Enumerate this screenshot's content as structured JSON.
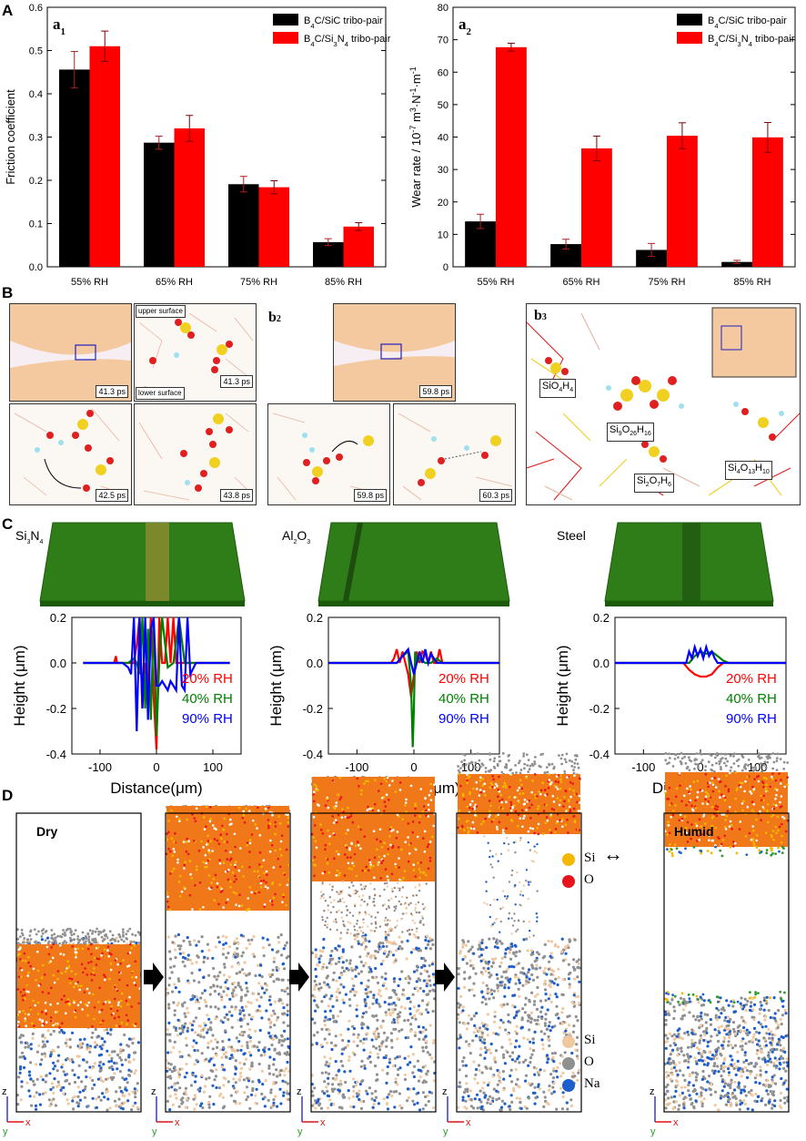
{
  "panels": {
    "A": "A",
    "B": "B",
    "C": "C",
    "D": "D"
  },
  "colors": {
    "black": "#000000",
    "red": "#ff0000",
    "green": "#008000",
    "blue": "#0000ff",
    "si_md": "#f5b800",
    "o_md": "#e8141b",
    "na": "#1f5fcc",
    "o_gray": "#909090",
    "si_peach": "#f0c8a0",
    "material": "#2e7d1a"
  },
  "chart_data": [
    {
      "type": "bar",
      "id": "a1",
      "panel_label": "a",
      "panel_sub": "1",
      "title": "",
      "categories": [
        "55% RH",
        "65% RH",
        "75% RH",
        "85% RH"
      ],
      "series": [
        {
          "name": "B4C/SiC tribo-pair",
          "legend_parts": [
            "B",
            "4",
            "C/SiC tribo-pair"
          ],
          "color": "#000000",
          "values": [
            0.456,
            0.287,
            0.191,
            0.057
          ],
          "errors": [
            0.042,
            0.015,
            0.018,
            0.008
          ]
        },
        {
          "name": "B4C/Si3N4 tribo-pair",
          "legend_parts": [
            "B",
            "4",
            "C/Si",
            "3",
            "N",
            "4",
            " tribo-pair"
          ],
          "color": "#ff0000",
          "values": [
            0.51,
            0.32,
            0.184,
            0.093
          ],
          "errors": [
            0.035,
            0.03,
            0.015,
            0.009
          ]
        }
      ],
      "ylabel": "Friction coefficient",
      "ylim": [
        0,
        0.6
      ],
      "yticks": [
        "0.0",
        "0.1",
        "0.2",
        "0.3",
        "0.4",
        "0.5",
        "0.6"
      ]
    },
    {
      "type": "bar",
      "id": "a2",
      "panel_label": "a",
      "panel_sub": "2",
      "title": "",
      "categories": [
        "55% RH",
        "65% RH",
        "75% RH",
        "85% RH"
      ],
      "series": [
        {
          "name": "B4C/SiC tribo-pair",
          "legend_parts": [
            "B",
            "4",
            "C/SiC tribo-pair"
          ],
          "color": "#000000",
          "values": [
            14.0,
            7.0,
            5.2,
            1.5
          ],
          "errors": [
            2.2,
            1.5,
            2.0,
            0.5
          ]
        },
        {
          "name": "B4C/Si3N4 tribo-pair",
          "legend_parts": [
            "B",
            "4",
            "C/Si",
            "3",
            "N",
            "4",
            " tribo-pair"
          ],
          "color": "#ff0000",
          "values": [
            67.7,
            36.5,
            40.4,
            39.9
          ],
          "errors": [
            1.2,
            3.8,
            4.0,
            4.6
          ]
        }
      ],
      "ylabel": "Wear rate / 10-7 m3·N-1·m-1",
      "ylim": [
        0,
        80
      ],
      "yticks": [
        "0",
        "10",
        "20",
        "30",
        "40",
        "50",
        "60",
        "70",
        "80"
      ]
    },
    {
      "type": "line",
      "id": "c_si3n4",
      "material": "Si3N4",
      "xlabel": "Distance(μm)",
      "ylabel": "Height (μm)",
      "xlim": [
        -150,
        150
      ],
      "ylim": [
        -0.4,
        0.2
      ],
      "xticks": [
        "-100",
        "0",
        "100"
      ],
      "yticks": [
        "0.2",
        "0.0",
        "-0.2",
        "-0.4"
      ],
      "series": [
        {
          "name": "20% RH",
          "color": "#ff0000",
          "x": [
            -130,
            -75,
            -72,
            -70,
            -60,
            -40,
            -35,
            -30,
            -25,
            -20,
            -15,
            -10,
            -5,
            0,
            5,
            10,
            15,
            20,
            25,
            30,
            35,
            40,
            50,
            60,
            70,
            80,
            100,
            130
          ],
          "y": [
            0.0,
            0.0,
            0.03,
            0.0,
            0.0,
            0.0,
            0.08,
            0.2,
            -0.2,
            0.0,
            -0.1,
            0.2,
            -0.15,
            -0.38,
            0.2,
            0.0,
            0.0,
            0.2,
            0.0,
            0.2,
            0.0,
            0.0,
            0.0,
            0.0,
            0.0,
            0.0,
            0.0,
            0.0
          ]
        },
        {
          "name": "40% RH",
          "color": "#008000",
          "x": [
            -130,
            -60,
            -50,
            -40,
            -35,
            -30,
            -25,
            -20,
            -15,
            -10,
            -5,
            0,
            5,
            10,
            20,
            30,
            40,
            50,
            60,
            70,
            100,
            130
          ],
          "y": [
            0.0,
            0.0,
            0.0,
            0.02,
            0.0,
            -0.05,
            0.2,
            -0.2,
            0.15,
            -0.25,
            0.2,
            -0.32,
            0.0,
            0.2,
            -0.02,
            0.0,
            0.2,
            0.0,
            0.0,
            0.0,
            0.0,
            0.0
          ]
        },
        {
          "name": "90% RH",
          "color": "#0000ff",
          "x": [
            -130,
            -60,
            -50,
            -45,
            -40,
            -35,
            -30,
            -25,
            -20,
            -15,
            -10,
            -5,
            0,
            5,
            10,
            15,
            20,
            25,
            30,
            35,
            40,
            45,
            50,
            55,
            60,
            70,
            100,
            130
          ],
          "y": [
            0.0,
            0.0,
            -0.02,
            -0.05,
            0.2,
            -0.3,
            0.2,
            -0.2,
            0.2,
            -0.25,
            0.15,
            0.2,
            -0.1,
            -0.1,
            -0.08,
            -0.1,
            -0.12,
            -0.08,
            -0.1,
            -0.12,
            0.2,
            -0.1,
            -0.12,
            0.2,
            -0.05,
            0.0,
            0.0,
            0.0
          ]
        }
      ]
    },
    {
      "type": "line",
      "id": "c_al2o3",
      "material": "Al2O3",
      "xlabel": "Distance(μm)",
      "ylabel": "Height (μm)",
      "xlim": [
        -150,
        150
      ],
      "ylim": [
        -0.4,
        0.2
      ],
      "xticks": [
        "-100",
        "0",
        "100"
      ],
      "yticks": [
        "0.2",
        "0.0",
        "-0.2",
        "-0.4"
      ],
      "series": [
        {
          "name": "20% RH",
          "color": "#ff0000",
          "x": [
            -150,
            -40,
            -35,
            -30,
            -25,
            -20,
            -15,
            -10,
            -5,
            0,
            5,
            10,
            15,
            20,
            25,
            30,
            35,
            40,
            45,
            50,
            55,
            60,
            150
          ],
          "y": [
            0.0,
            0.0,
            0.02,
            0.06,
            0.0,
            0.05,
            0.0,
            -0.05,
            -0.15,
            -0.05,
            0.05,
            0.0,
            0.05,
            0.04,
            0.0,
            0.05,
            0.0,
            0.0,
            0.06,
            0.0,
            0.0,
            0.0,
            0.0
          ]
        },
        {
          "name": "40% RH",
          "color": "#008000",
          "x": [
            -150,
            -30,
            -20,
            -10,
            -5,
            -2,
            0,
            2,
            5,
            10,
            20,
            30,
            40,
            50,
            60,
            150
          ],
          "y": [
            0.0,
            0.0,
            0.03,
            0.05,
            -0.1,
            -0.37,
            -0.2,
            0.05,
            0.0,
            0.02,
            0.0,
            0.0,
            0.02,
            0.0,
            0.0,
            0.0
          ]
        },
        {
          "name": "90% RH",
          "color": "#0000ff",
          "x": [
            -150,
            -40,
            -30,
            -20,
            -10,
            -5,
            0,
            5,
            10,
            15,
            20,
            25,
            30,
            40,
            50,
            150
          ],
          "y": [
            0.0,
            0.0,
            0.0,
            0.03,
            0.06,
            0.0,
            -0.05,
            0.0,
            0.05,
            0.0,
            0.06,
            0.0,
            0.04,
            0.0,
            0.0,
            0.0
          ]
        }
      ]
    },
    {
      "type": "line",
      "id": "c_steel",
      "material": "Steel",
      "xlabel": "Distance (μm)",
      "ylabel": "Height (μm)",
      "xlim": [
        -150,
        150
      ],
      "ylim": [
        -0.4,
        0.2
      ],
      "xticks": [
        "-100",
        "0",
        "100"
      ],
      "yticks": [
        "0.2",
        "0.0",
        "-0.2",
        "-0.4"
      ],
      "series": [
        {
          "name": "20% RH",
          "color": "#ff0000",
          "x": [
            -150,
            -30,
            -20,
            -10,
            0,
            10,
            20,
            30,
            40,
            150
          ],
          "y": [
            0.0,
            0.0,
            -0.03,
            -0.05,
            -0.06,
            -0.06,
            -0.05,
            -0.02,
            0.0,
            0.0
          ]
        },
        {
          "name": "40% RH",
          "color": "#008000",
          "x": [
            -150,
            -20,
            -10,
            0,
            10,
            20,
            30,
            40,
            50,
            150
          ],
          "y": [
            0.0,
            0.0,
            0.03,
            0.05,
            0.04,
            0.05,
            0.03,
            0.01,
            0.0,
            0.0
          ]
        },
        {
          "name": "90% RH",
          "color": "#0000ff",
          "x": [
            -150,
            -25,
            -20,
            -15,
            -10,
            -5,
            0,
            5,
            10,
            15,
            20,
            25,
            30,
            150
          ],
          "y": [
            0.0,
            0.0,
            0.05,
            0.02,
            0.07,
            0.03,
            0.06,
            0.02,
            0.07,
            0.03,
            0.05,
            0.02,
            0.0,
            0.0
          ]
        }
      ]
    }
  ],
  "panel_b": {
    "b1": {
      "label": "b",
      "sub": "1",
      "times": [
        "41.3 ps",
        "41.3 ps",
        "42.5 ps",
        "43.8 ps"
      ],
      "upper": "upper surface",
      "lower": "lower surface"
    },
    "b2": {
      "label": "b",
      "sub": "2",
      "times": [
        "59.8 ps",
        "59.8 ps",
        "60.3 ps"
      ]
    },
    "b3": {
      "label": "b",
      "sub": "3"
    }
  },
  "panel_c": {
    "materials": [
      "Si3N4",
      "Al2O3",
      "Steel"
    ]
  },
  "panel_d": {
    "labels": {
      "dry": "Dry",
      "humid": "Humid"
    },
    "legend_top": [
      {
        "label": "Si",
        "color": "#f5b800"
      },
      {
        "label": "O",
        "color": "#e8141b"
      }
    ],
    "legend_bottom": [
      {
        "label": "Si",
        "color": "#f0c8a0"
      },
      {
        "label": "O",
        "color": "#909090"
      },
      {
        "label": "Na",
        "color": "#1f5fcc"
      }
    ],
    "axes": {
      "z": "z",
      "x": "x",
      "y": "y"
    },
    "arrow": "↔"
  }
}
